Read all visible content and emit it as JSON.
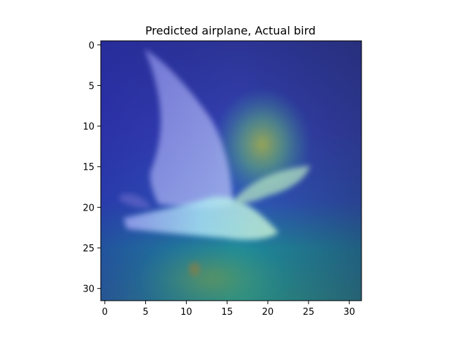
{
  "chart_data": {
    "type": "heatmap",
    "title": "Predicted airplane, Actual bird",
    "xlabel": "",
    "ylabel": "",
    "image_size": [
      32,
      32
    ],
    "xlim": [
      -0.5,
      31.5
    ],
    "ylim": [
      31.5,
      -0.5
    ],
    "x_ticks": [
      0,
      5,
      10,
      15,
      20,
      25,
      30
    ],
    "y_ticks": [
      0,
      5,
      10,
      15,
      20,
      25,
      30
    ],
    "x_tick_labels": [
      "0",
      "5",
      "10",
      "15",
      "20",
      "25",
      "30"
    ],
    "y_tick_labels": [
      "0",
      "5",
      "10",
      "15",
      "20",
      "25",
      "30"
    ],
    "overlay": "saliency heatmap (jet colormap) blended over image of a bird in flight",
    "colors": {
      "background_top": "#2a2f8a",
      "background_mid": "#3a45b8",
      "background_bottom": "#1f8f8f",
      "hotspot": "#8fae5a",
      "bird_body": "#9fdcf0",
      "bird_wing": "#a4a8f2"
    }
  }
}
